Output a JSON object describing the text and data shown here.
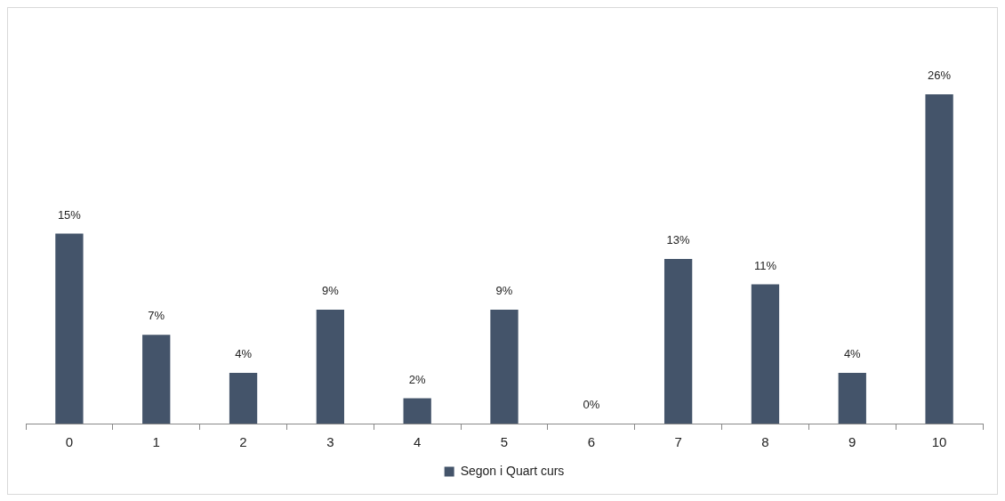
{
  "chart_data": {
    "type": "bar",
    "categories": [
      "0",
      "1",
      "2",
      "3",
      "4",
      "5",
      "6",
      "7",
      "8",
      "9",
      "10"
    ],
    "series": [
      {
        "name": "Segon i Quart curs",
        "color": "#44546a",
        "values": [
          15,
          7,
          4,
          9,
          2,
          9,
          0,
          13,
          11,
          4,
          26
        ],
        "value_labels": [
          "15%",
          "7%",
          "4%",
          "9%",
          "2%",
          "9%",
          "0%",
          "13%",
          "11%",
          "4%",
          "26%"
        ]
      }
    ],
    "legend": "bottom",
    "grid": false,
    "tick_labels": "x"
  }
}
